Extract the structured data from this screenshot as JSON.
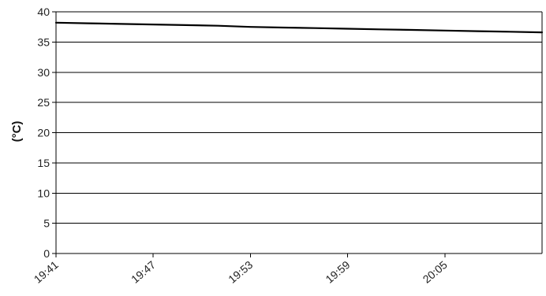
{
  "chart_data": {
    "type": "line",
    "title": "",
    "xlabel": "",
    "ylabel": "(°C)",
    "ylim": [
      0,
      40
    ],
    "yticks": [
      0,
      5,
      10,
      15,
      20,
      25,
      30,
      35,
      40
    ],
    "xlim": [
      "19:41",
      "20:11"
    ],
    "xticks": [
      "19:41",
      "19:47",
      "19:53",
      "19:59",
      "20:05"
    ],
    "grid": true,
    "legend": "none",
    "series": [
      {
        "color": "#000000",
        "x": [
          "19:41",
          "19:43",
          "19:45",
          "19:47",
          "19:49",
          "19:51",
          "19:53",
          "19:55",
          "19:57",
          "19:59",
          "20:01",
          "20:03",
          "20:05",
          "20:07",
          "20:09",
          "20:11"
        ],
        "values": [
          38.2,
          38.1,
          38.0,
          37.9,
          37.8,
          37.7,
          37.5,
          37.4,
          37.3,
          37.2,
          37.1,
          37.0,
          36.9,
          36.8,
          36.7,
          36.6
        ]
      }
    ]
  }
}
